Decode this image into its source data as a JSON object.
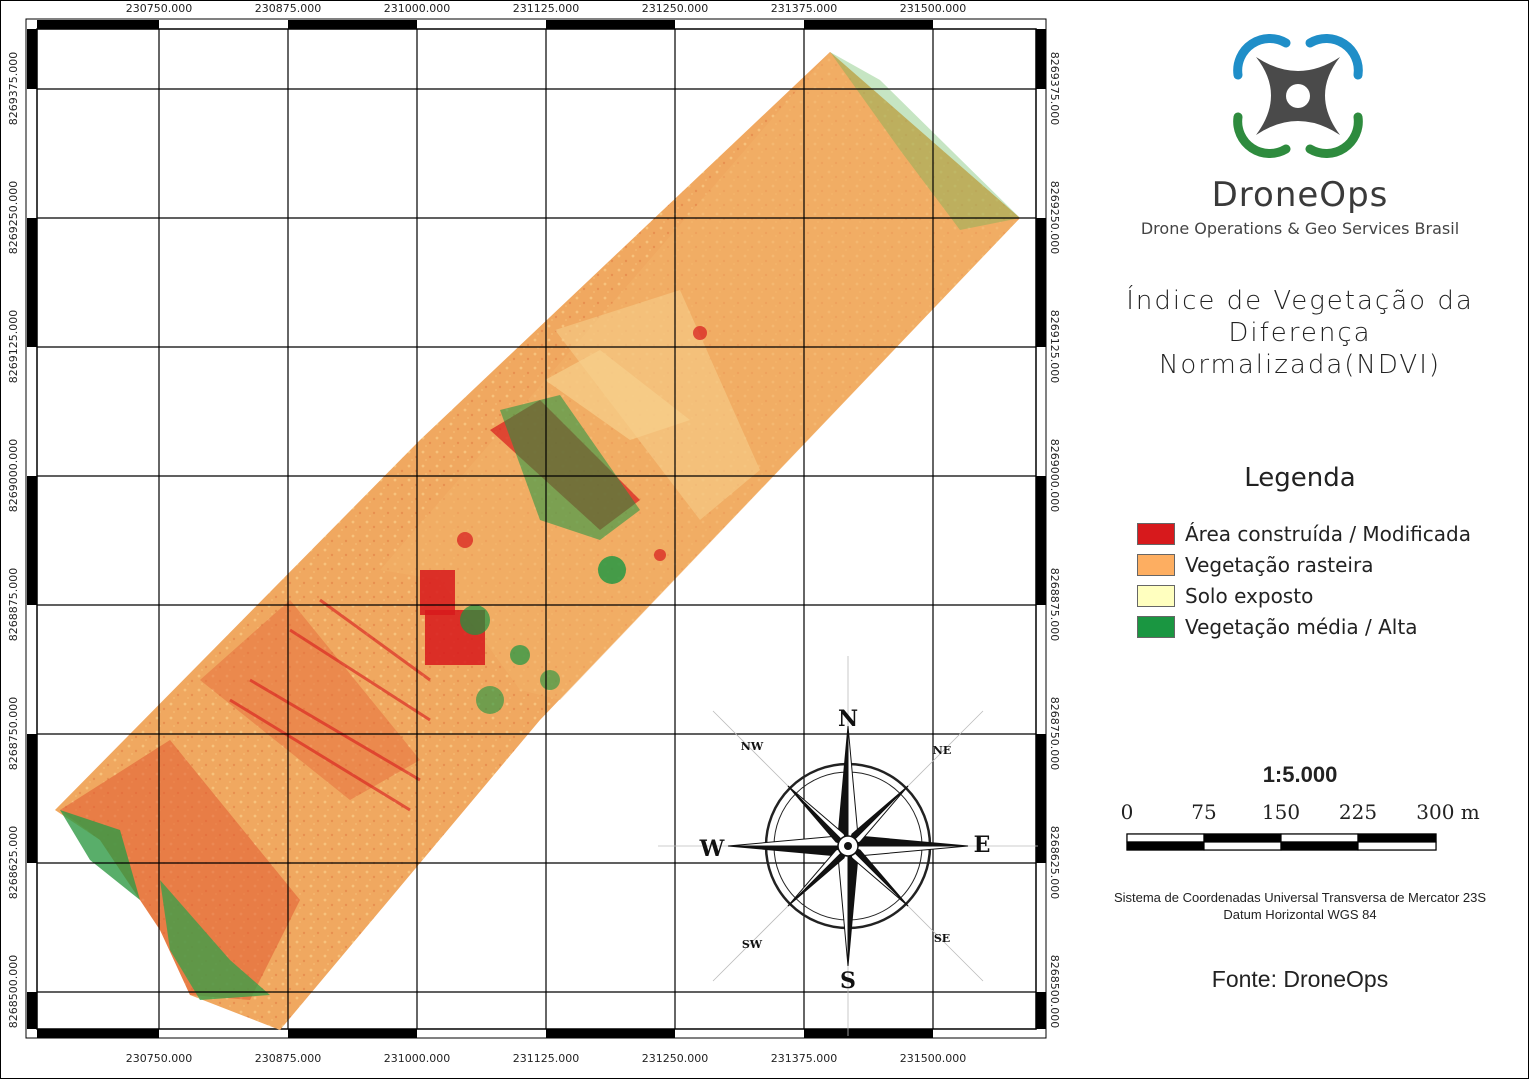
{
  "coords": {
    "top_x": [
      "230750.000",
      "230875.000",
      "231000.000",
      "231125.000",
      "231250.000",
      "231375.000",
      "231500.000"
    ],
    "bottom_x": [
      "230750.000",
      "230875.000",
      "231000.000",
      "231125.000",
      "231250.000",
      "231375.000",
      "231500.000"
    ],
    "left_y": [
      "8269375.000",
      "8269250.000",
      "8269125.000",
      "8269000.000",
      "8268875.000",
      "8268750.000",
      "8268625.000",
      "8268500.000"
    ],
    "right_y": [
      "8269375.000",
      "8269250.000",
      "8269125.000",
      "8269000.000",
      "8268875.000",
      "8268750.000",
      "8268625.000",
      "8268500.000"
    ]
  },
  "brand": {
    "name": "DroneOps",
    "tagline": "Drone Operations & Geo Services Brasil",
    "colors": {
      "blue": "#1f8ec8",
      "green": "#2e8b3e",
      "gray": "#4a4a4a"
    }
  },
  "title": {
    "line1": "Índice de Vegetação da",
    "line2": "Diferença",
    "line3": "Normalizada(NDVI)"
  },
  "legend": {
    "title": "Legenda",
    "items": [
      {
        "label": "Área construída / Modificada",
        "color": "#d7191c"
      },
      {
        "label": "Vegetação rasteira",
        "color": "#fdae61"
      },
      {
        "label": "Solo exposto",
        "color": "#ffffbf"
      },
      {
        "label": "Vegetação média / Alta",
        "color": "#1a9641"
      }
    ]
  },
  "compass": {
    "N": "N",
    "S": "S",
    "E": "E",
    "W": "W",
    "NE": "NE",
    "NW": "NW",
    "SE": "SE",
    "SW": "SW"
  },
  "scale": {
    "ratio": "1:5.000",
    "ticks": [
      "0",
      "75",
      "150",
      "225",
      "300 m"
    ]
  },
  "crs": {
    "line1": "Sistema de Coordenadas Universal Transversa de Mercator 23S",
    "line2": "Datum Horizontal WGS 84"
  },
  "source": "Fonte: DroneOps"
}
